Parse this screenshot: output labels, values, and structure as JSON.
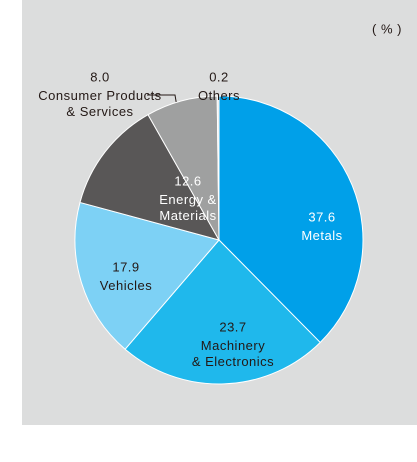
{
  "chart_data": {
    "type": "pie",
    "unit": "( % )",
    "categories": [
      "Metals",
      "Machinery\n& Electronics",
      "Vehicles",
      "Energy &\nMaterials",
      "Consumer Products\n& Services",
      "Others"
    ],
    "values": [
      37.6,
      23.7,
      17.9,
      12.6,
      8.0,
      0.2
    ],
    "value_labels": [
      "37.6",
      "23.7",
      "17.9",
      "12.6",
      "8.0",
      "0.2"
    ],
    "colors": [
      "#00a0e9",
      "#1fb8ec",
      "#7dd1f5",
      "#595757",
      "#9fa0a0",
      "#dcdddd"
    ]
  }
}
